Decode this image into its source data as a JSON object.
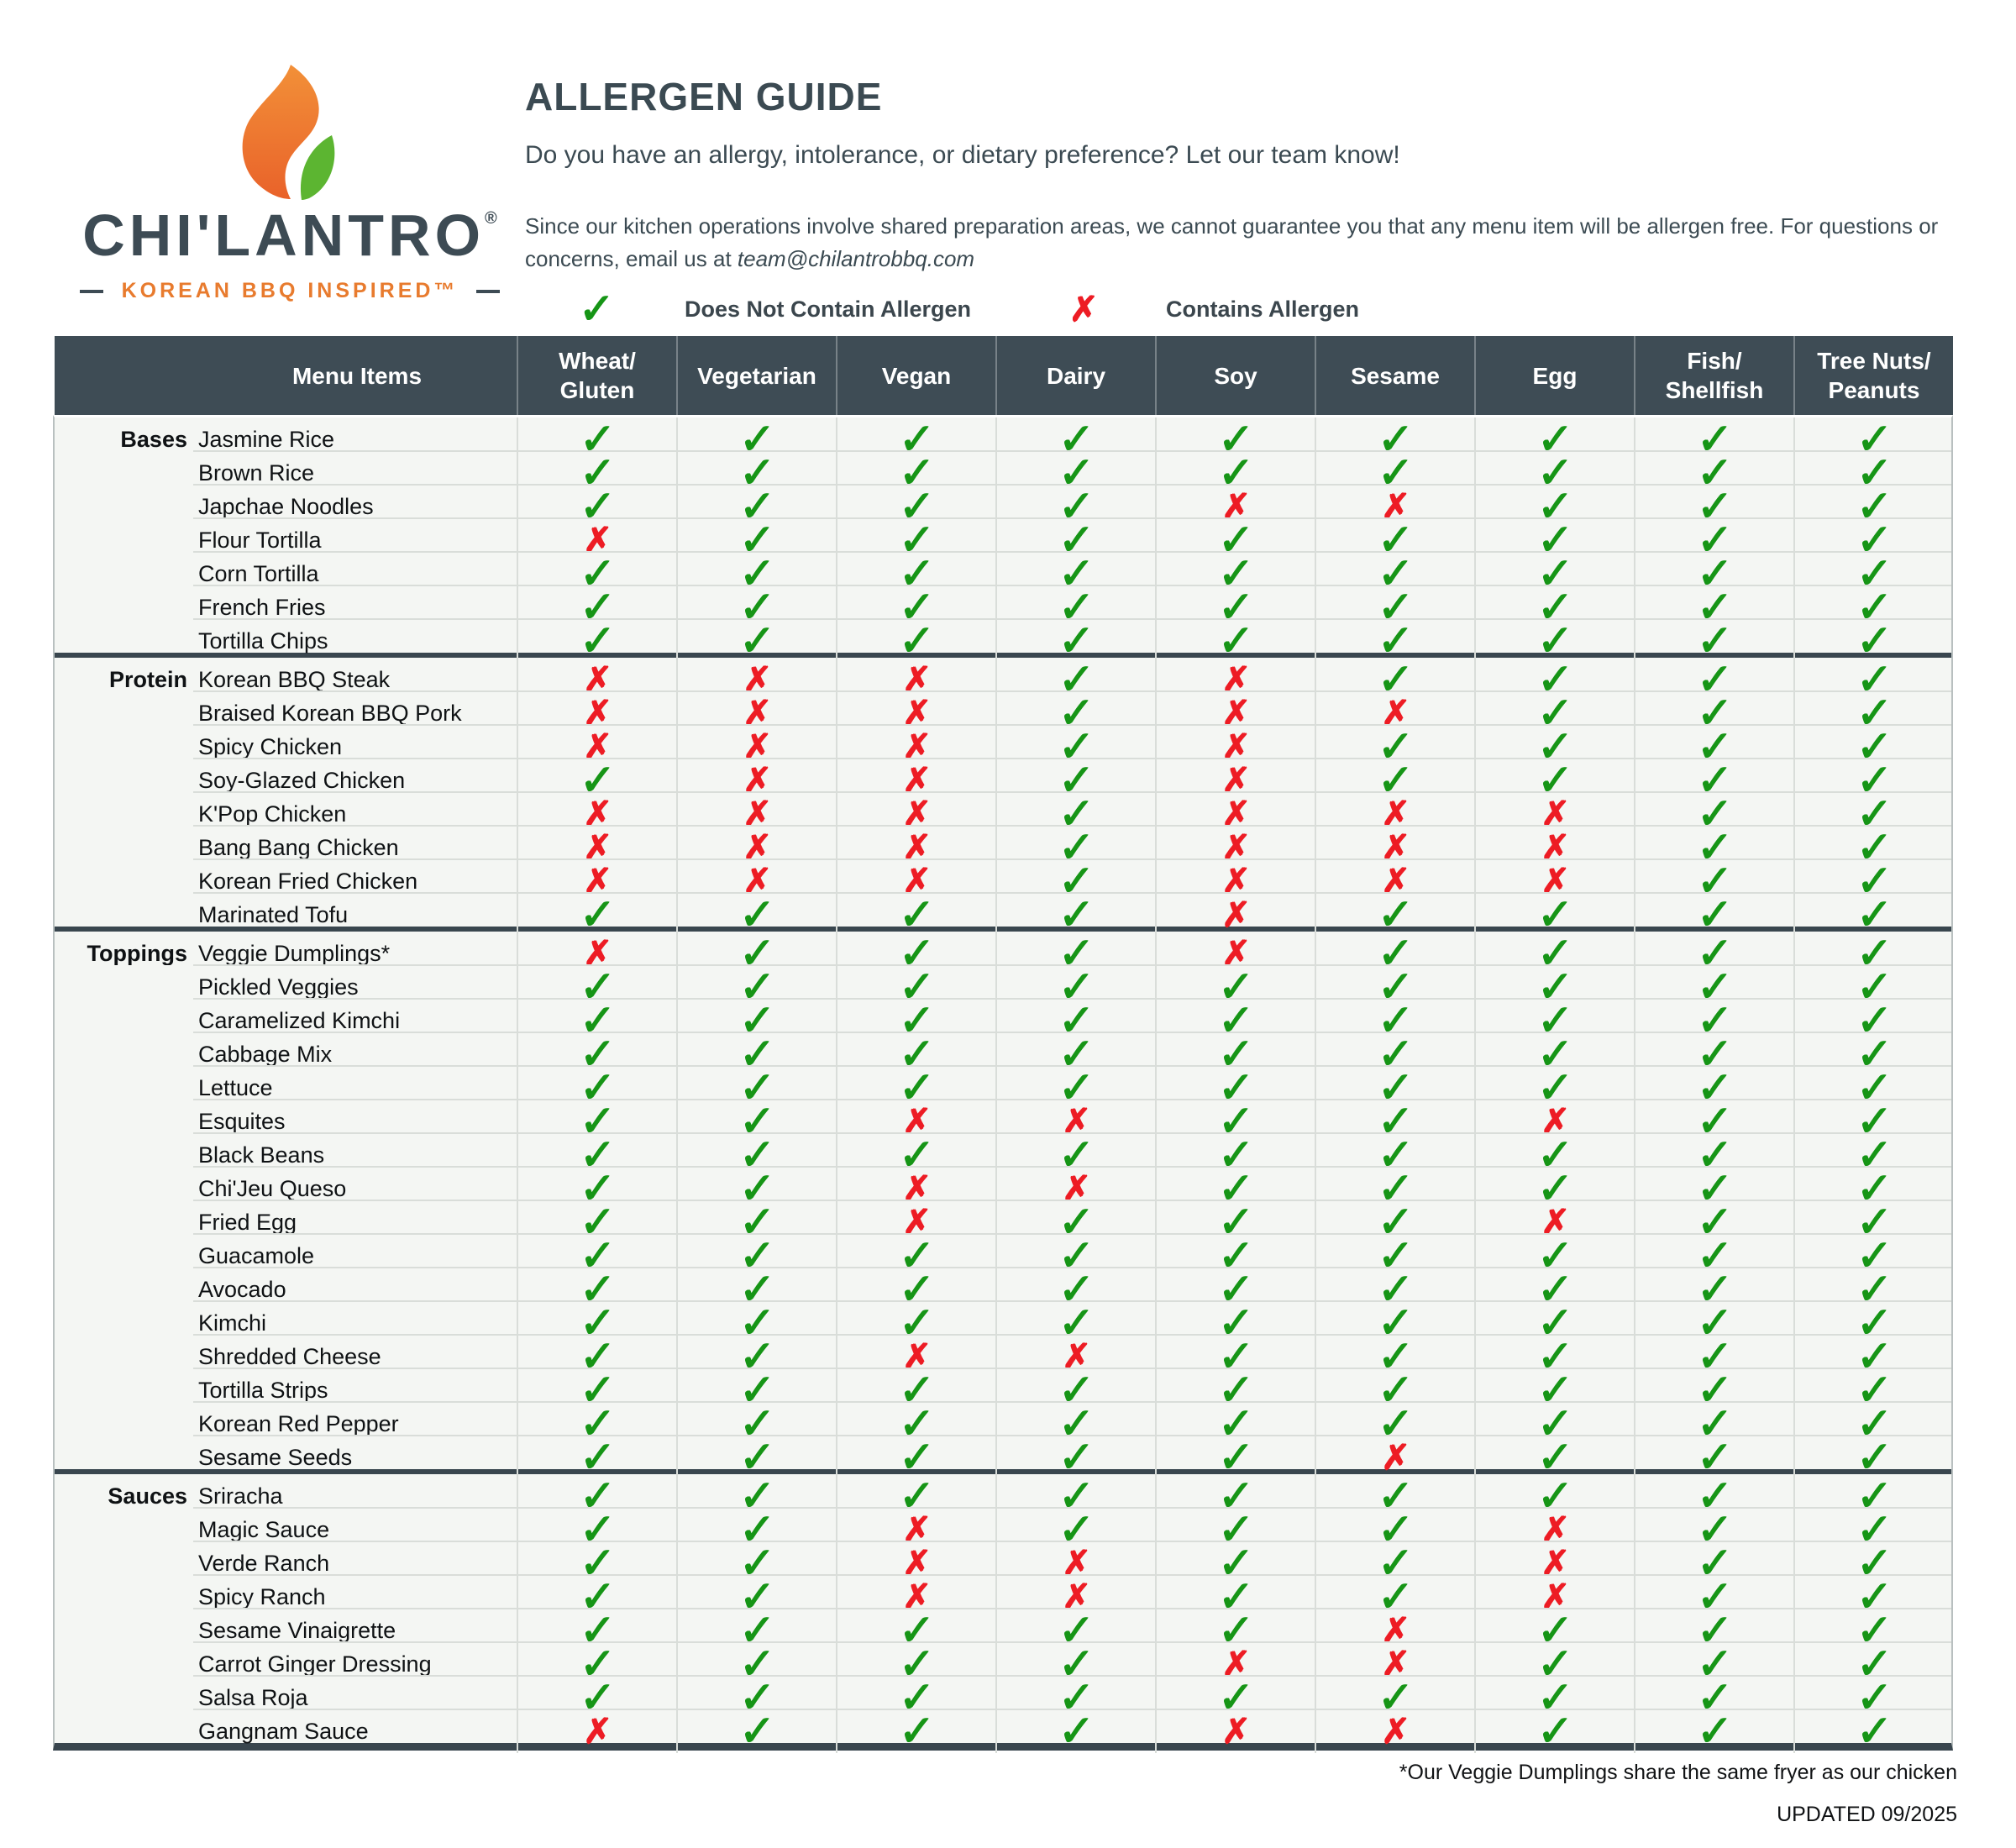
{
  "brand": {
    "name": "CHI'LANTRO",
    "registered": "®",
    "tagline": "KOREAN BBQ INSPIRED™"
  },
  "header": {
    "title": "ALLERGEN GUIDE",
    "subtitle": "Do you have an allergy, intolerance, or dietary preference? Let our team know!",
    "disclaimer_before": "Since our kitchen operations involve shared preparation areas, we cannot guarantee you that any menu item will be allergen free. For questions or concerns, email us at ",
    "email": "team@chilantrobbq.com"
  },
  "legend": {
    "check_label": "Does Not Contain Allergen",
    "x_label": "Contains Allergen"
  },
  "glyphs": {
    "check": "✓",
    "x": "✗"
  },
  "colors": {
    "slate": "#3E4C55",
    "check_green": "#169516",
    "x_red": "#ED1C24",
    "brand_orange": "#E87B2E",
    "leaf_green": "#5CB531"
  },
  "table": {
    "menu_header": "Menu Items",
    "columns": [
      [
        "Wheat/",
        "Gluten"
      ],
      [
        "Vegetarian"
      ],
      [
        "Vegan"
      ],
      [
        "Dairy"
      ],
      [
        "Soy"
      ],
      [
        "Sesame"
      ],
      [
        "Egg"
      ],
      [
        "Fish/",
        "Shellfish"
      ],
      [
        "Tree Nuts/",
        "Peanuts"
      ]
    ],
    "sections": [
      {
        "name": "Bases",
        "rows": [
          {
            "item": "Jasmine Rice",
            "marks": [
              1,
              1,
              1,
              1,
              1,
              1,
              1,
              1,
              1
            ]
          },
          {
            "item": "Brown Rice",
            "marks": [
              1,
              1,
              1,
              1,
              1,
              1,
              1,
              1,
              1
            ]
          },
          {
            "item": "Japchae Noodles",
            "marks": [
              1,
              1,
              1,
              1,
              0,
              0,
              1,
              1,
              1
            ]
          },
          {
            "item": "Flour Tortilla",
            "marks": [
              0,
              1,
              1,
              1,
              1,
              1,
              1,
              1,
              1
            ]
          },
          {
            "item": "Corn Tortilla",
            "marks": [
              1,
              1,
              1,
              1,
              1,
              1,
              1,
              1,
              1
            ]
          },
          {
            "item": "French Fries",
            "marks": [
              1,
              1,
              1,
              1,
              1,
              1,
              1,
              1,
              1
            ]
          },
          {
            "item": "Tortilla Chips",
            "marks": [
              1,
              1,
              1,
              1,
              1,
              1,
              1,
              1,
              1
            ]
          }
        ]
      },
      {
        "name": "Protein",
        "rows": [
          {
            "item": "Korean BBQ Steak",
            "marks": [
              0,
              0,
              0,
              1,
              0,
              1,
              1,
              1,
              1
            ]
          },
          {
            "item": "Braised Korean BBQ Pork",
            "marks": [
              0,
              0,
              0,
              1,
              0,
              0,
              1,
              1,
              1
            ]
          },
          {
            "item": "Spicy Chicken",
            "marks": [
              0,
              0,
              0,
              1,
              0,
              1,
              1,
              1,
              1
            ]
          },
          {
            "item": "Soy-Glazed Chicken",
            "marks": [
              1,
              0,
              0,
              1,
              0,
              1,
              1,
              1,
              1
            ]
          },
          {
            "item": "K'Pop Chicken",
            "marks": [
              0,
              0,
              0,
              1,
              0,
              0,
              0,
              1,
              1
            ]
          },
          {
            "item": "Bang Bang Chicken",
            "marks": [
              0,
              0,
              0,
              1,
              0,
              0,
              0,
              1,
              1
            ]
          },
          {
            "item": "Korean Fried Chicken",
            "marks": [
              0,
              0,
              0,
              1,
              0,
              0,
              0,
              1,
              1
            ]
          },
          {
            "item": "Marinated Tofu",
            "marks": [
              1,
              1,
              1,
              1,
              0,
              1,
              1,
              1,
              1
            ]
          }
        ]
      },
      {
        "name": "Toppings",
        "rows": [
          {
            "item": "Veggie Dumplings*",
            "marks": [
              0,
              1,
              1,
              1,
              0,
              1,
              1,
              1,
              1
            ]
          },
          {
            "item": "Pickled Veggies",
            "marks": [
              1,
              1,
              1,
              1,
              1,
              1,
              1,
              1,
              1
            ]
          },
          {
            "item": "Caramelized Kimchi",
            "marks": [
              1,
              1,
              1,
              1,
              1,
              1,
              1,
              1,
              1
            ]
          },
          {
            "item": "Cabbage Mix",
            "marks": [
              1,
              1,
              1,
              1,
              1,
              1,
              1,
              1,
              1
            ]
          },
          {
            "item": "Lettuce",
            "marks": [
              1,
              1,
              1,
              1,
              1,
              1,
              1,
              1,
              1
            ]
          },
          {
            "item": "Esquites",
            "marks": [
              1,
              1,
              0,
              0,
              1,
              1,
              0,
              1,
              1
            ]
          },
          {
            "item": "Black Beans",
            "marks": [
              1,
              1,
              1,
              1,
              1,
              1,
              1,
              1,
              1
            ]
          },
          {
            "item": "Chi'Jeu Queso",
            "marks": [
              1,
              1,
              0,
              0,
              1,
              1,
              1,
              1,
              1
            ]
          },
          {
            "item": "Fried Egg",
            "marks": [
              1,
              1,
              0,
              1,
              1,
              1,
              0,
              1,
              1
            ]
          },
          {
            "item": "Guacamole",
            "marks": [
              1,
              1,
              1,
              1,
              1,
              1,
              1,
              1,
              1
            ]
          },
          {
            "item": "Avocado",
            "marks": [
              1,
              1,
              1,
              1,
              1,
              1,
              1,
              1,
              1
            ]
          },
          {
            "item": "Kimchi",
            "marks": [
              1,
              1,
              1,
              1,
              1,
              1,
              1,
              1,
              1
            ]
          },
          {
            "item": "Shredded Cheese",
            "marks": [
              1,
              1,
              0,
              0,
              1,
              1,
              1,
              1,
              1
            ]
          },
          {
            "item": "Tortilla Strips",
            "marks": [
              1,
              1,
              1,
              1,
              1,
              1,
              1,
              1,
              1
            ]
          },
          {
            "item": "Korean Red Pepper",
            "marks": [
              1,
              1,
              1,
              1,
              1,
              1,
              1,
              1,
              1
            ]
          },
          {
            "item": "Sesame Seeds",
            "marks": [
              1,
              1,
              1,
              1,
              1,
              0,
              1,
              1,
              1
            ]
          }
        ]
      },
      {
        "name": "Sauces",
        "rows": [
          {
            "item": "Sriracha",
            "marks": [
              1,
              1,
              1,
              1,
              1,
              1,
              1,
              1,
              1
            ]
          },
          {
            "item": "Magic Sauce",
            "marks": [
              1,
              1,
              0,
              1,
              1,
              1,
              0,
              1,
              1
            ]
          },
          {
            "item": "Verde Ranch",
            "marks": [
              1,
              1,
              0,
              0,
              1,
              1,
              0,
              1,
              1
            ]
          },
          {
            "item": "Spicy Ranch",
            "marks": [
              1,
              1,
              0,
              0,
              1,
              1,
              0,
              1,
              1
            ]
          },
          {
            "item": "Sesame Vinaigrette",
            "marks": [
              1,
              1,
              1,
              1,
              1,
              0,
              1,
              1,
              1
            ]
          },
          {
            "item": "Carrot Ginger Dressing",
            "marks": [
              1,
              1,
              1,
              1,
              0,
              0,
              1,
              1,
              1
            ]
          },
          {
            "item": "Salsa Roja",
            "marks": [
              1,
              1,
              1,
              1,
              1,
              1,
              1,
              1,
              1
            ]
          },
          {
            "item": "Gangnam Sauce",
            "marks": [
              0,
              1,
              1,
              1,
              0,
              0,
              1,
              1,
              1
            ]
          }
        ]
      }
    ]
  },
  "footer": {
    "note": "*Our Veggie Dumplings share the same fryer as our chicken",
    "updated": "UPDATED 09/2025"
  }
}
